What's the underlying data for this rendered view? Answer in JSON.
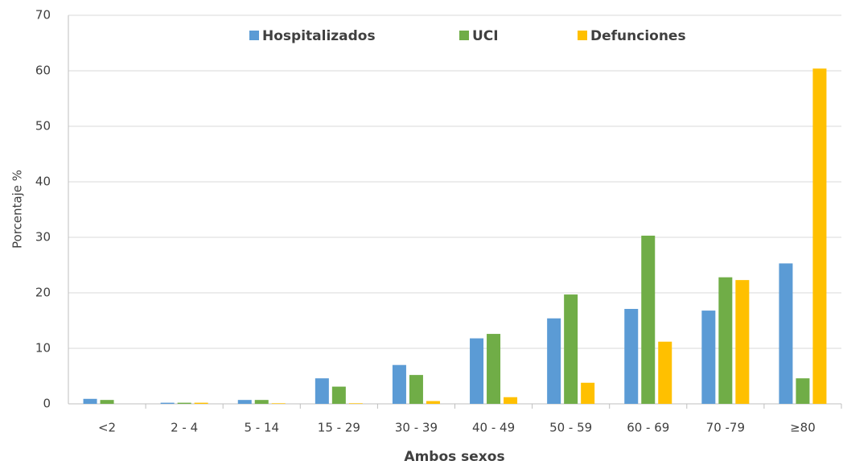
{
  "chart_data": {
    "type": "bar",
    "x_label": "Ambos sexos",
    "y_label": "Porcentaje %",
    "categories": [
      "<2",
      "2 - 4",
      "5 - 14",
      "15 - 29",
      "30 - 39",
      "40 - 49",
      "50 - 59",
      "60 - 69",
      "70 -79",
      "≥80"
    ],
    "series": [
      {
        "name": "Hospitalizados",
        "color": "#5b9bd5",
        "values": [
          0.9,
          0.2,
          0.7,
          4.6,
          7.0,
          11.8,
          15.4,
          17.1,
          16.8,
          25.3
        ]
      },
      {
        "name": "UCI",
        "color": "#70ad47",
        "values": [
          0.7,
          0.2,
          0.7,
          3.1,
          5.2,
          12.6,
          19.7,
          30.3,
          22.8,
          4.6
        ]
      },
      {
        "name": "Defunciones",
        "color": "#ffc000",
        "values": [
          0.0,
          0.2,
          0.1,
          0.1,
          0.5,
          1.2,
          3.8,
          11.2,
          22.3,
          60.4
        ]
      }
    ],
    "ylim": [
      0,
      70
    ],
    "yticks": [
      0,
      10,
      20,
      30,
      40,
      50,
      60,
      70
    ],
    "grid": true,
    "legend": "top"
  }
}
